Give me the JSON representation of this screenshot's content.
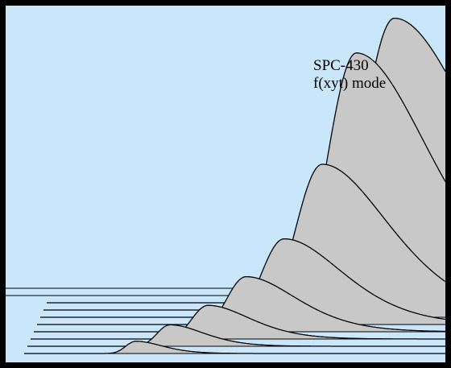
{
  "annotation": {
    "line1": "SPC-430",
    "line2": "f(xyt) mode"
  },
  "colors": {
    "background": "#c9e6fb",
    "fill": "#c8c8c8",
    "outline": "#000000",
    "frame": "#000000"
  },
  "chart_data": {
    "type": "area",
    "title": "",
    "xlabel": "",
    "ylabel": "",
    "grid": false,
    "legend": "none",
    "description_of_axes": "waterfall / stacked 3D decay curves, no printed axes",
    "series": [
      {
        "peak_time": 0.58,
        "peak_height": 0.04
      },
      {
        "peak_time": 0.74,
        "peak_height": 0.07
      },
      {
        "peak_time": 0.92,
        "peak_height": 0.11
      },
      {
        "peak_time": 1.1,
        "peak_height": 0.18
      },
      {
        "peak_time": 1.28,
        "peak_height": 0.28
      },
      {
        "peak_time": 1.46,
        "peak_height": 0.5
      },
      {
        "peak_time": 1.62,
        "peak_height": 0.84
      },
      {
        "peak_time": 1.8,
        "peak_height": 0.93
      }
    ]
  }
}
